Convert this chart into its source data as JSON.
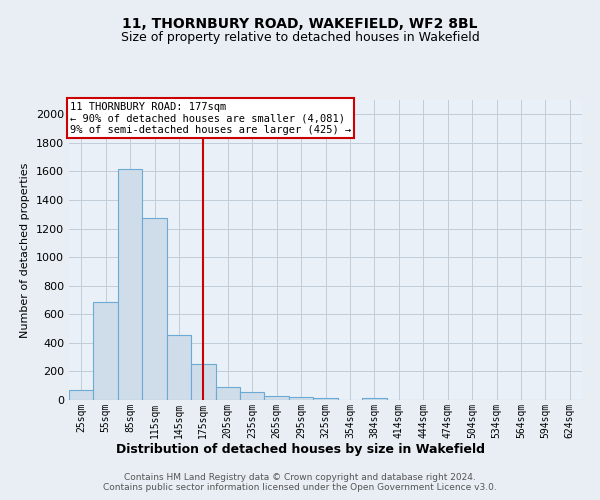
{
  "title1": "11, THORNBURY ROAD, WAKEFIELD, WF2 8BL",
  "title2": "Size of property relative to detached houses in Wakefield",
  "xlabel": "Distribution of detached houses by size in Wakefield",
  "ylabel": "Number of detached properties",
  "categories": [
    "25sqm",
    "55sqm",
    "85sqm",
    "115sqm",
    "145sqm",
    "175sqm",
    "205sqm",
    "235sqm",
    "265sqm",
    "295sqm",
    "325sqm",
    "354sqm",
    "384sqm",
    "414sqm",
    "444sqm",
    "474sqm",
    "504sqm",
    "534sqm",
    "564sqm",
    "594sqm",
    "624sqm"
  ],
  "values": [
    68,
    686,
    1620,
    1275,
    453,
    250,
    93,
    58,
    30,
    20,
    15,
    0,
    12,
    0,
    0,
    0,
    0,
    0,
    0,
    0,
    0
  ],
  "bar_color": "#cfdce9",
  "bar_edge_color": "#6aaad4",
  "vline_x": 5,
  "vline_color": "#cc0000",
  "annotation_line1": "11 THORNBURY ROAD: 177sqm",
  "annotation_line2": "← 90% of detached houses are smaller (4,081)",
  "annotation_line3": "9% of semi-detached houses are larger (425) →",
  "annotation_box_color": "white",
  "annotation_box_edge_color": "#cc0000",
  "ylim": [
    0,
    2100
  ],
  "yticks": [
    0,
    200,
    400,
    600,
    800,
    1000,
    1200,
    1400,
    1600,
    1800,
    2000
  ],
  "footer": "Contains HM Land Registry data © Crown copyright and database right 2024.\nContains public sector information licensed under the Open Government Licence v3.0.",
  "bg_color": "#e8eef4",
  "plot_bg_color": "#eaf0f7",
  "grid_color": "#c0ccd8"
}
